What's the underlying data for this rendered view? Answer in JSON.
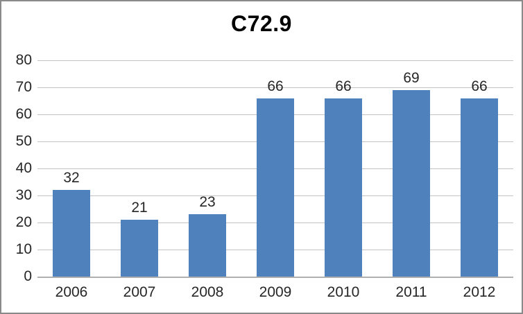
{
  "chart_data": {
    "type": "bar",
    "title": "C72.9",
    "categories": [
      "2006",
      "2007",
      "2008",
      "2009",
      "2010",
      "2011",
      "2012"
    ],
    "values": [
      32,
      21,
      23,
      66,
      66,
      69,
      66
    ],
    "data_labels": [
      32,
      21,
      23,
      66,
      66,
      69,
      66
    ],
    "yticks": [
      0,
      10,
      20,
      30,
      40,
      50,
      60,
      70,
      80
    ],
    "ylim": [
      0,
      80
    ],
    "xlabel": "",
    "ylabel": "",
    "grid": true,
    "legend_position": "none",
    "bar_color": "#4F81BD",
    "gridline_color": "#C3C3C3",
    "axis_line_color": "#B0B0B0",
    "label_color": "#262626",
    "title_color": "#000000",
    "border_color": "#8A8A8A",
    "background_color": "#FFFFFF"
  }
}
